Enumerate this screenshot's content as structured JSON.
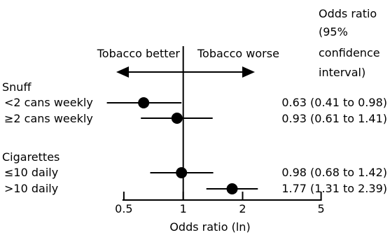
{
  "chart_data": {
    "type": "forest",
    "xscale": "log",
    "xlim": [
      0.45,
      5.4
    ],
    "xticks": [
      0.5,
      1,
      2,
      5
    ],
    "tick_labels": [
      "0.5",
      "1",
      "2",
      "5"
    ],
    "reference_line": 1,
    "xlabel": "Odds ratio (ln)",
    "column_header": [
      "Odds ratio",
      "(95%",
      "confidence",
      "interval)"
    ],
    "direction_left": "Tobacco better",
    "direction_right": "Tobacco worse",
    "groups": [
      {
        "label": "Snuff",
        "rows": [
          {
            "label": "<2 cans weekly",
            "or": 0.63,
            "lo": 0.41,
            "hi": 0.98,
            "text": "0.63 (0.41 to 0.98)"
          },
          {
            "label": "≥2 cans weekly",
            "or": 0.93,
            "lo": 0.61,
            "hi": 1.41,
            "text": "0.93 (0.61 to 1.41)"
          }
        ]
      },
      {
        "label": "Cigarettes",
        "rows": [
          {
            "label": "≤10 daily",
            "or": 0.98,
            "lo": 0.68,
            "hi": 1.42,
            "text": "0.98 (0.68 to 1.42)"
          },
          {
            "label": ">10 daily",
            "or": 1.77,
            "lo": 1.31,
            "hi": 2.39,
            "text": "1.77 (1.31 to 2.39)"
          }
        ]
      }
    ]
  }
}
